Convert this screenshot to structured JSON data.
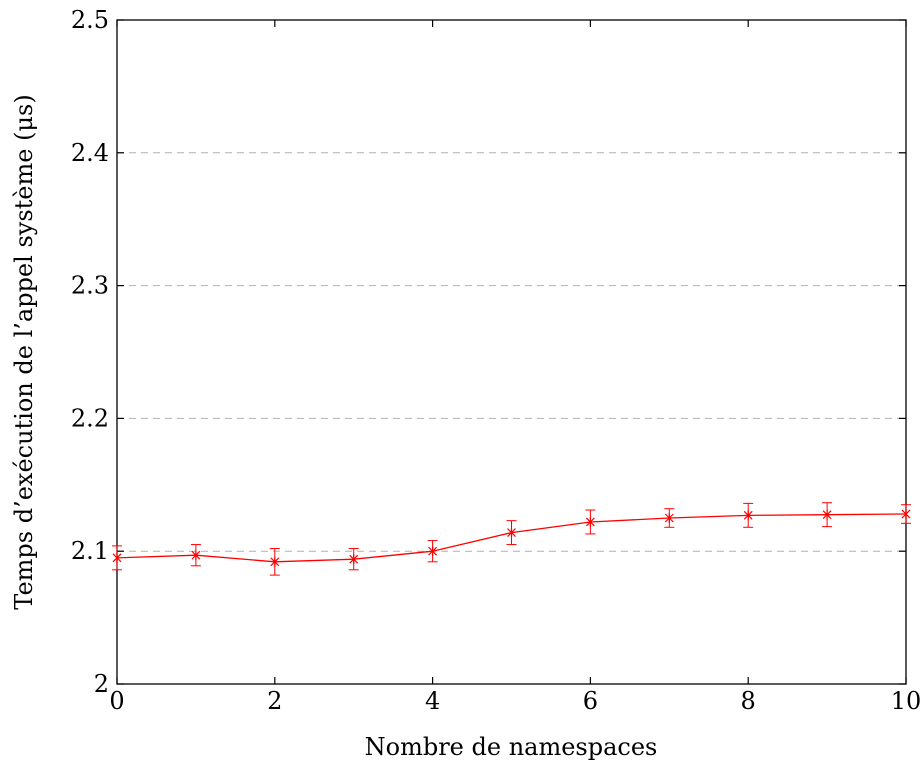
{
  "chart_data": {
    "type": "line",
    "title": "",
    "xlabel": "Nombre de namespaces",
    "ylabel": "Temps d’exécution de l’appel système (μs)",
    "xlim": [
      0,
      10
    ],
    "ylim": [
      2,
      2.5
    ],
    "xticks": [
      "0",
      "2",
      "4",
      "6",
      "8",
      "10"
    ],
    "yticks": [
      "2",
      "2.1",
      "2.2",
      "2.3",
      "2.4",
      "2.5"
    ],
    "grid": "horizontal dashed",
    "series": [
      {
        "color": "#ff0000",
        "marker": "x-star",
        "x": [
          0,
          1,
          2,
          3,
          4,
          5,
          6,
          7,
          8,
          9,
          10
        ],
        "y": [
          2.095,
          2.097,
          2.092,
          2.094,
          2.1,
          2.114,
          2.122,
          2.125,
          2.127,
          2.1275,
          2.128
        ],
        "error": [
          0.009,
          0.008,
          0.01,
          0.008,
          0.008,
          0.009,
          0.009,
          0.007,
          0.009,
          0.009,
          0.007
        ]
      }
    ]
  }
}
